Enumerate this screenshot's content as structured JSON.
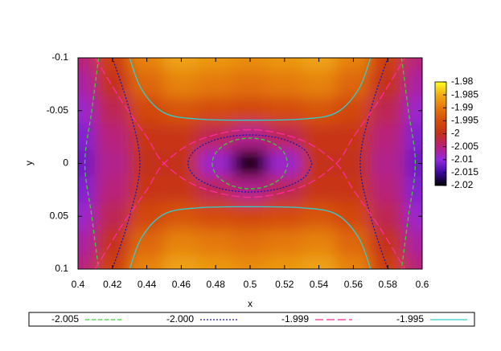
{
  "chart_data": {
    "type": "heatmap",
    "xlabel": "x",
    "ylabel": "y",
    "xlim": [
      0.4,
      0.6
    ],
    "xticks": [
      0.4,
      0.42,
      0.44,
      0.46,
      0.48,
      0.5,
      0.52,
      0.54,
      0.56,
      0.58,
      0.6
    ],
    "ylim": [
      -0.1,
      0.1
    ],
    "y_reversed": true,
    "yticks": [
      -0.1,
      -0.05,
      0,
      0.05,
      0.1
    ],
    "zlim": [
      -2.02,
      -1.98
    ],
    "zticks": [
      -1.98,
      -1.985,
      -1.99,
      -1.995,
      -2,
      -2.005,
      -2.01,
      -2.015,
      -2.02
    ],
    "colormap": [
      "#000000",
      "#3c0a9c",
      "#9428e0",
      "#b8207a",
      "#c4301c",
      "#d44c08",
      "#e4780a",
      "#f0ac14",
      "#ffff20"
    ],
    "x": [
      0.4,
      0.42,
      0.44,
      0.46,
      0.48,
      0.5,
      0.52,
      0.54,
      0.56,
      0.58,
      0.6
    ],
    "y": [
      -0.1,
      -0.075,
      -0.05,
      -0.025,
      0,
      0.025,
      0.05,
      0.075,
      0.1
    ],
    "z": [
      [
        -2.005,
        -1.997,
        -1.989,
        -1.986,
        -1.987,
        -1.988,
        -1.987,
        -1.986,
        -1.989,
        -1.997,
        -2.005
      ],
      [
        -2.007,
        -2,
        -1.992,
        -1.989,
        -1.99,
        -1.991,
        -1.99,
        -1.989,
        -1.992,
        -2,
        -2.007
      ],
      [
        -2.009,
        -2.003,
        -1.996,
        -1.994,
        -1.995,
        -1.996,
        -1.995,
        -1.994,
        -1.996,
        -2.003,
        -2.009
      ],
      [
        -2.011,
        -2.005,
        -1.999,
        -1.999,
        -2.003,
        -2.006,
        -2.003,
        -1.999,
        -1.999,
        -2.005,
        -2.011
      ],
      [
        -2.012,
        -2.006,
        -2,
        -2,
        -2.009,
        -2.02,
        -2.009,
        -2,
        -2,
        -2.006,
        -2.012
      ],
      [
        -2.011,
        -2.005,
        -1.999,
        -1.999,
        -2.003,
        -2.006,
        -2.003,
        -1.999,
        -1.999,
        -2.005,
        -2.011
      ],
      [
        -2.009,
        -2.003,
        -1.996,
        -1.994,
        -1.995,
        -1.996,
        -1.995,
        -1.994,
        -1.996,
        -2.003,
        -2.009
      ],
      [
        -2.007,
        -2,
        -1.992,
        -1.989,
        -1.99,
        -1.991,
        -1.99,
        -1.989,
        -1.992,
        -2,
        -2.007
      ],
      [
        -2.005,
        -1.997,
        -1.989,
        -1.986,
        -1.987,
        -1.988,
        -1.987,
        -1.986,
        -1.989,
        -1.997,
        -2.005
      ]
    ],
    "series": [
      {
        "name": "-2.005",
        "color": "#3ccc3c",
        "dash": "5 3",
        "x": [
          0.412,
          0.408,
          0.404,
          0.408,
          0.412,
          null,
          0.588,
          0.592,
          0.596,
          0.592,
          0.588,
          null,
          0.522,
          0.519,
          0.511,
          0.5,
          0.489,
          0.481,
          0.478,
          0.481,
          0.489,
          0.5,
          0.511,
          0.519,
          0.522
        ],
        "y": [
          -0.1,
          -0.05,
          0,
          0.05,
          0.1,
          null,
          -0.1,
          -0.05,
          0,
          0.05,
          0.1,
          null,
          0,
          0.012,
          0.0208,
          0.024,
          0.0208,
          0.012,
          0,
          -0.012,
          -0.0208,
          -0.024,
          -0.0208,
          -0.012,
          0
        ]
      },
      {
        "name": "-2.000",
        "color": "#1a1aa8",
        "dash": "2 2",
        "x": [
          0.42,
          0.43,
          0.436,
          0.43,
          0.42,
          null,
          0.58,
          0.57,
          0.564,
          0.57,
          0.58,
          null,
          0.536,
          0.5312,
          0.518,
          0.5,
          0.482,
          0.4688,
          0.464,
          0.4688,
          0.482,
          0.5,
          0.518,
          0.5312,
          0.536
        ],
        "y": [
          -0.1,
          -0.05,
          0,
          0.05,
          0.1,
          null,
          -0.1,
          -0.05,
          0,
          0.05,
          0.1,
          null,
          0,
          0.0135,
          0.0234,
          0.027,
          0.0234,
          0.0135,
          0,
          -0.0135,
          -0.0234,
          -0.027,
          -0.0234,
          -0.0135,
          0
        ]
      },
      {
        "name": "-1.999",
        "color": "#ff2a9a",
        "dash": "10 4",
        "x": [
          0.41,
          0.425,
          0.44,
          0.45,
          0.47,
          0.5,
          0.53,
          0.55,
          0.56,
          0.575,
          0.59,
          null,
          0.41,
          0.425,
          0.44,
          0.45,
          0.47,
          0.5,
          0.53,
          0.55,
          0.56,
          0.575,
          0.59
        ],
        "y": [
          -0.1,
          -0.06,
          -0.025,
          0,
          0.022,
          0.032,
          0.022,
          0,
          -0.025,
          -0.06,
          -0.1,
          null,
          0.1,
          0.06,
          0.025,
          0,
          -0.022,
          -0.032,
          -0.022,
          0,
          0.025,
          0.06,
          0.1
        ]
      },
      {
        "name": "-1.995",
        "color": "#33cccc",
        "dash": "none",
        "x": [
          0.43,
          0.437,
          0.45,
          0.47,
          0.5,
          0.53,
          0.55,
          0.563,
          0.57,
          null,
          0.43,
          0.437,
          0.45,
          0.47,
          0.5,
          0.53,
          0.55,
          0.563,
          0.57
        ],
        "y": [
          -0.1,
          -0.07,
          -0.048,
          -0.042,
          -0.041,
          -0.042,
          -0.048,
          -0.07,
          -0.1,
          null,
          0.1,
          0.07,
          0.048,
          0.042,
          0.041,
          0.042,
          0.048,
          0.07,
          0.1
        ]
      }
    ]
  }
}
